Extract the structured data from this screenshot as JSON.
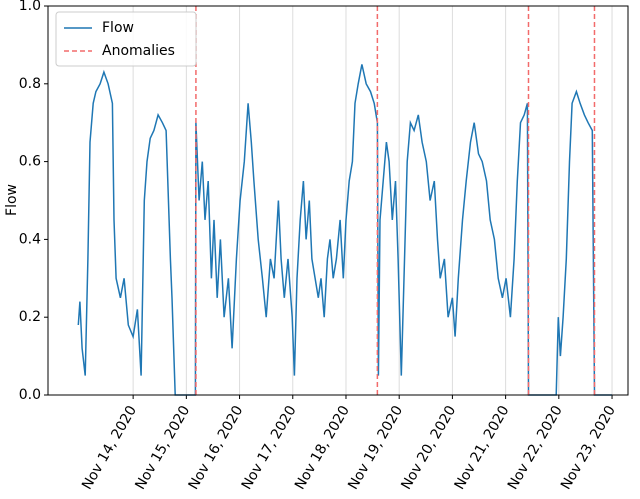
{
  "chart_data": {
    "type": "line",
    "ylabel": "Flow",
    "xlim": [
      12.4,
      23.3
    ],
    "xticks": [
      {
        "value": 14,
        "label": "Nov 14, 2020"
      },
      {
        "value": 15,
        "label": "Nov 15, 2020"
      },
      {
        "value": 16,
        "label": "Nov 16, 2020"
      },
      {
        "value": 17,
        "label": "Nov 17, 2020"
      },
      {
        "value": 18,
        "label": "Nov 18, 2020"
      },
      {
        "value": 19,
        "label": "Nov 19, 2020"
      },
      {
        "value": 20,
        "label": "Nov 20, 2020"
      },
      {
        "value": 21,
        "label": "Nov 21, 2020"
      },
      {
        "value": 22,
        "label": "Nov 22, 2020"
      },
      {
        "value": 23,
        "label": "Nov 23, 2020"
      }
    ],
    "ylim": [
      0,
      1
    ],
    "yticks": [
      {
        "value": 0,
        "label": "0.0"
      },
      0.2,
      0.4,
      0.6,
      0.8,
      {
        "value": 1,
        "label": "1.0"
      }
    ],
    "grid": "x",
    "legend": "upper left",
    "series": [
      {
        "name": "Flow",
        "color": "#1f77b4",
        "x": [
          12.97,
          13.0,
          13.04,
          13.1,
          13.15,
          13.19,
          13.25,
          13.3,
          13.38,
          13.45,
          13.53,
          13.61,
          13.64,
          13.68,
          13.76,
          13.83,
          13.91,
          14.0,
          14.08,
          14.15,
          14.21,
          14.26,
          14.32,
          14.39,
          14.47,
          14.55,
          14.62,
          14.7,
          14.73,
          14.79,
          15.17,
          15.18,
          15.24,
          15.3,
          15.35,
          15.41,
          15.47,
          15.52,
          15.58,
          15.64,
          15.71,
          15.79,
          15.86,
          15.94,
          16.01,
          16.09,
          16.16,
          16.22,
          16.27,
          16.35,
          16.43,
          16.5,
          16.58,
          16.65,
          16.73,
          16.78,
          16.84,
          16.91,
          16.99,
          17.03,
          17.08,
          17.14,
          17.2,
          17.25,
          17.31,
          17.36,
          17.42,
          17.48,
          17.53,
          17.59,
          17.65,
          17.7,
          17.76,
          17.82,
          17.89,
          17.95,
          18.0,
          18.06,
          18.12,
          18.17,
          18.23,
          18.3,
          18.38,
          18.46,
          18.53,
          18.59,
          18.61,
          18.64,
          18.7,
          18.76,
          18.81,
          18.87,
          18.93,
          18.98,
          19.04,
          19.09,
          19.15,
          19.21,
          19.28,
          19.36,
          19.43,
          19.51,
          19.58,
          19.66,
          19.72,
          19.77,
          19.85,
          19.92,
          20.0,
          20.05,
          20.11,
          20.19,
          20.26,
          20.34,
          20.41,
          20.49,
          20.56,
          20.64,
          20.71,
          20.79,
          20.86,
          20.94,
          21.01,
          21.09,
          21.16,
          21.22,
          21.28,
          21.35,
          21.41,
          21.43,
          21.95,
          21.99,
          22.03,
          22.08,
          22.14,
          22.2,
          22.25,
          22.33,
          22.4,
          22.48,
          22.55,
          22.63,
          22.67,
          23.0
        ],
        "values": [
          0.18,
          0.24,
          0.12,
          0.05,
          0.35,
          0.65,
          0.75,
          0.78,
          0.8,
          0.83,
          0.8,
          0.75,
          0.45,
          0.3,
          0.25,
          0.3,
          0.18,
          0.15,
          0.22,
          0.05,
          0.5,
          0.6,
          0.66,
          0.68,
          0.72,
          0.7,
          0.68,
          0.35,
          0.25,
          0,
          0,
          0.7,
          0.5,
          0.6,
          0.45,
          0.55,
          0.3,
          0.45,
          0.25,
          0.4,
          0.2,
          0.3,
          0.12,
          0.35,
          0.5,
          0.6,
          0.75,
          0.65,
          0.55,
          0.4,
          0.3,
          0.2,
          0.35,
          0.3,
          0.5,
          0.35,
          0.25,
          0.35,
          0.2,
          0.05,
          0.3,
          0.45,
          0.55,
          0.4,
          0.5,
          0.35,
          0.3,
          0.25,
          0.3,
          0.2,
          0.35,
          0.4,
          0.3,
          0.35,
          0.45,
          0.3,
          0.45,
          0.55,
          0.6,
          0.75,
          0.8,
          0.85,
          0.8,
          0.78,
          0.75,
          0.7,
          0.05,
          0.45,
          0.55,
          0.65,
          0.6,
          0.45,
          0.55,
          0.35,
          0.05,
          0.3,
          0.6,
          0.7,
          0.68,
          0.72,
          0.65,
          0.6,
          0.5,
          0.55,
          0.4,
          0.3,
          0.35,
          0.2,
          0.25,
          0.15,
          0.3,
          0.45,
          0.55,
          0.65,
          0.7,
          0.62,
          0.6,
          0.55,
          0.45,
          0.4,
          0.3,
          0.25,
          0.3,
          0.2,
          0.35,
          0.55,
          0.7,
          0.72,
          0.75,
          0,
          0,
          0.2,
          0.1,
          0.2,
          0.35,
          0.6,
          0.75,
          0.78,
          0.75,
          0.72,
          0.7,
          0.68,
          0,
          0
        ]
      },
      {
        "name": "Anomalies",
        "color": "#f26b6b",
        "x": [
          15.18,
          18.59,
          21.43,
          22.67
        ]
      }
    ]
  }
}
